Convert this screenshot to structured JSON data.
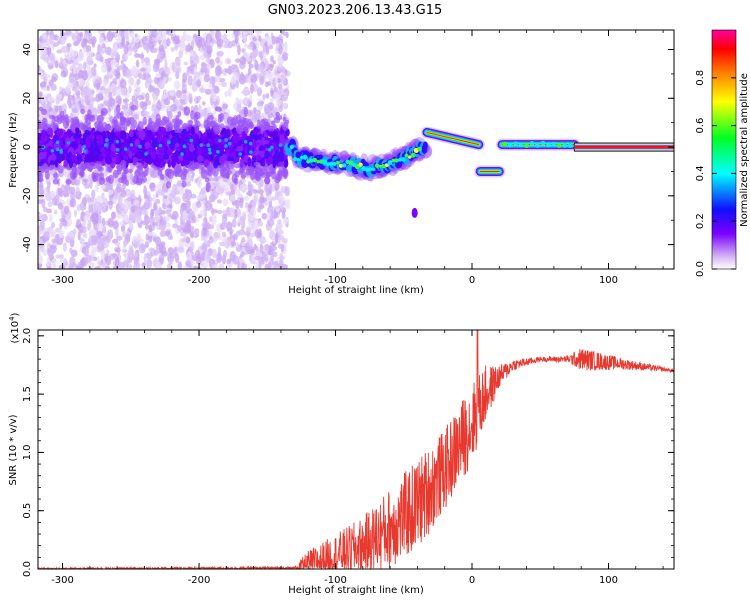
{
  "figure": {
    "title": "GN03.2023.206.13.43.G15"
  },
  "chart_data": [
    {
      "type": "heatmap",
      "title": "",
      "xlabel": "Height of straight line (km)",
      "ylabel": "Frequency (Hz)",
      "xlim": [
        -318,
        148
      ],
      "ylim": [
        -50,
        48
      ],
      "x_ticks": [
        -300,
        -200,
        -100,
        0,
        100
      ],
      "y_ticks": [
        -40,
        -20,
        0,
        20,
        40
      ],
      "grid": false,
      "colorbar": {
        "label": "Normalized spectral amplitude",
        "range": [
          0,
          1
        ],
        "ticks": [
          0.0,
          0.2,
          0.4,
          0.6,
          0.8
        ]
      },
      "description_points": {
        "noisy_region_x": [
          -318,
          -135
        ],
        "descending_trace": [
          {
            "x": -130,
            "y": -4
          },
          {
            "x": -110,
            "y": -6
          },
          {
            "x": -90,
            "y": -7
          },
          {
            "x": -75,
            "y": -9
          },
          {
            "x": -60,
            "y": -7
          },
          {
            "x": -45,
            "y": -3
          },
          {
            "x": -35,
            "y": 0
          }
        ],
        "segments": [
          {
            "x": [
              -33,
              5
            ],
            "y": [
              6,
              1
            ]
          },
          {
            "x": [
              6,
              20
            ],
            "y": [
              -10,
              -10
            ]
          },
          {
            "x": [
              22,
              75
            ],
            "y": [
              1,
              1
            ]
          },
          {
            "x": [
              75,
              148
            ],
            "y": [
              0,
              0
            ]
          }
        ],
        "blob": {
          "x": -42,
          "y": -27
        }
      }
    },
    {
      "type": "line",
      "title": "",
      "xlabel": "Height of straight line (km)",
      "ylabel": "SNR (10 * v/v)",
      "yscale_label": "(x10",
      "yscale_exp": "4",
      "xlim": [
        -318,
        148
      ],
      "ylim": [
        0,
        2.05
      ],
      "x_ticks": [
        -300,
        -200,
        -100,
        0,
        100
      ],
      "y_ticks": [
        "0.0",
        "0.5",
        "1.0",
        "1.5",
        "2.0"
      ],
      "color": "#e8392f",
      "grid": false,
      "envelope": [
        {
          "x": -318,
          "y": 0.0,
          "jitter": 0.01
        },
        {
          "x": -130,
          "y": 0.01,
          "jitter": 0.01
        },
        {
          "x": -120,
          "y": 0.04,
          "jitter": 0.12
        },
        {
          "x": -100,
          "y": 0.12,
          "jitter": 0.18
        },
        {
          "x": -80,
          "y": 0.2,
          "jitter": 0.25
        },
        {
          "x": -60,
          "y": 0.35,
          "jitter": 0.35
        },
        {
          "x": -40,
          "y": 0.55,
          "jitter": 0.4
        },
        {
          "x": -20,
          "y": 0.85,
          "jitter": 0.35
        },
        {
          "x": 0,
          "y": 1.25,
          "jitter": 0.35
        },
        {
          "x": 10,
          "y": 1.5,
          "jitter": 0.25
        },
        {
          "x": 20,
          "y": 1.65,
          "jitter": 0.1
        },
        {
          "x": 30,
          "y": 1.75,
          "jitter": 0.05
        },
        {
          "x": 50,
          "y": 1.8,
          "jitter": 0.02
        },
        {
          "x": 70,
          "y": 1.8,
          "jitter": 0.03
        },
        {
          "x": 80,
          "y": 1.8,
          "jitter": 0.1
        },
        {
          "x": 110,
          "y": 1.76,
          "jitter": 0.05
        },
        {
          "x": 148,
          "y": 1.7,
          "jitter": 0.01
        }
      ],
      "peak": {
        "x": 4,
        "y": 2.05
      }
    }
  ]
}
